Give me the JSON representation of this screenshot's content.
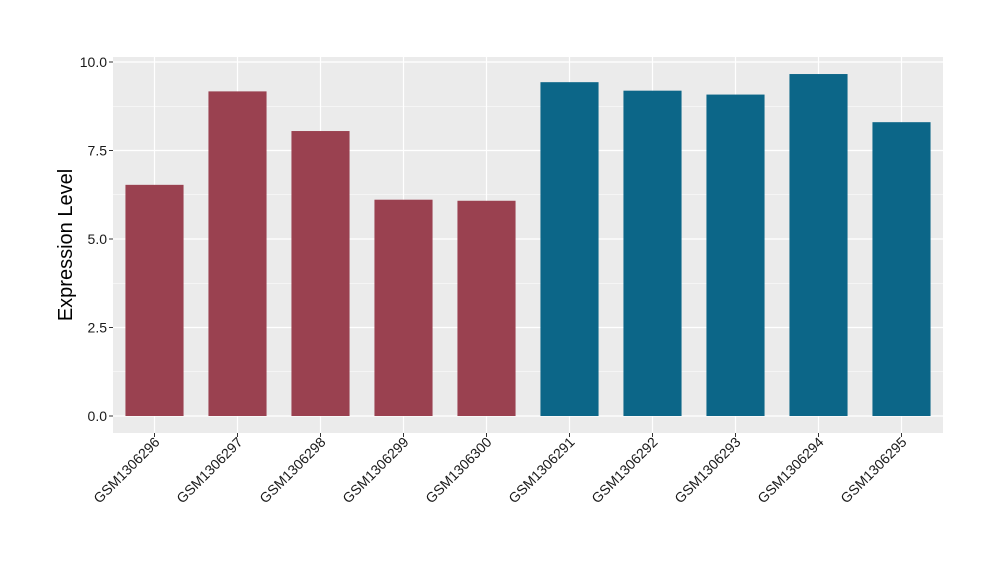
{
  "chart_data": {
    "type": "bar",
    "title": "",
    "xlabel": "",
    "ylabel": "Expression Level",
    "ylim": [
      0,
      10.25
    ],
    "yticks": [
      "0.0",
      "2.5",
      "5.0",
      "7.5",
      "10.0"
    ],
    "grid": true,
    "legend": "none",
    "categories": [
      "GSM1306296",
      "GSM1306297",
      "GSM1306298",
      "GSM1306299",
      "GSM1306300",
      "GSM1306291",
      "GSM1306292",
      "GSM1306293",
      "GSM1306294",
      "GSM1306295"
    ],
    "values": [
      6.53,
      9.17,
      8.05,
      6.11,
      6.08,
      9.43,
      9.19,
      9.08,
      9.66,
      8.3
    ],
    "group_of_bar": [
      0,
      0,
      0,
      0,
      0,
      1,
      1,
      1,
      1,
      1
    ],
    "group_colors": [
      "#9A4150",
      "#0C6688"
    ]
  },
  "style": {
    "panel_bg": "#EBEBEB",
    "grid_color": "#FFFFFF"
  }
}
